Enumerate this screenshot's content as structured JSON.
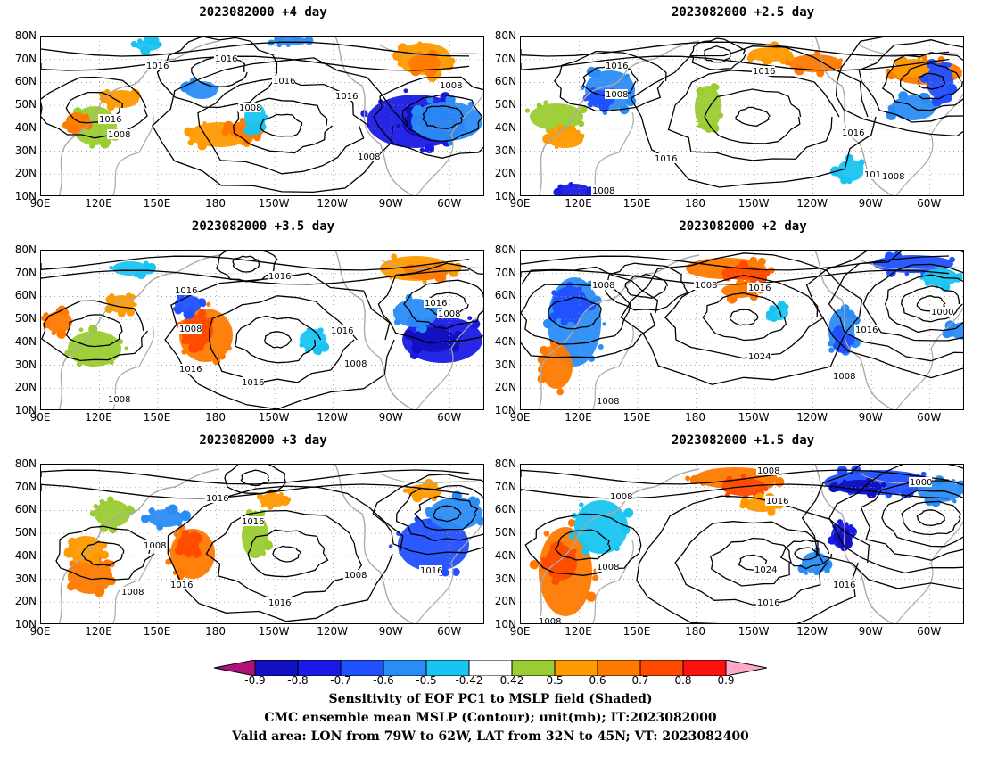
{
  "panels": [
    {
      "id": "p1",
      "title": "2023082000  +4 day"
    },
    {
      "id": "p2",
      "title": "2023082000  +2.5 day"
    },
    {
      "id": "p3",
      "title": "2023082000  +3.5 day"
    },
    {
      "id": "p4",
      "title": "2023082000  +2 day"
    },
    {
      "id": "p5",
      "title": "2023082000  +3 day"
    },
    {
      "id": "p6",
      "title": "2023082000  +1.5 day"
    }
  ],
  "axes": {
    "lat_labels": [
      "80N",
      "70N",
      "60N",
      "50N",
      "40N",
      "30N",
      "20N",
      "10N"
    ],
    "lon_labels": [
      "90E",
      "120E",
      "150E",
      "180",
      "150W",
      "120W",
      "90W",
      "60W"
    ]
  },
  "contour_labels": {
    "p1": [
      "1016",
      "1016",
      "1016",
      "1016",
      "1008",
      "1016",
      "1008",
      "1008",
      "1008"
    ],
    "p2": [
      "1016",
      "1016",
      "1008",
      "1016",
      "1016",
      "1016",
      "1008",
      "1008"
    ],
    "p3": [
      "1016",
      "1016",
      "1016",
      "1008",
      "1016",
      "1016",
      "1016",
      "1008",
      "1008",
      "1008"
    ],
    "p4": [
      "1008",
      "1008",
      "1016",
      "1000",
      "1016",
      "1024",
      "1008",
      "1008"
    ],
    "p5": [
      "1016",
      "1016",
      "1008",
      "1016",
      "1008",
      "1008",
      "1016",
      "1016"
    ],
    "p6": [
      "1008",
      "1008",
      "1000",
      "1016",
      "1008",
      "1024",
      "1016",
      "1016",
      "1008"
    ]
  },
  "colorbar": {
    "labels": [
      "-0.9",
      "-0.8",
      "-0.7",
      "-0.6",
      "-0.5",
      "-0.42",
      "0.42",
      "0.5",
      "0.6",
      "0.7",
      "0.8",
      "0.9"
    ],
    "colors": [
      "#b0107a",
      "#1010c0",
      "#1a1ae6",
      "#2050ff",
      "#2a8cf5",
      "#19c4f2",
      "#ffffff",
      "#9acd32",
      "#ff9a00",
      "#ff7a00",
      "#ff4a00",
      "#ff0f0f",
      "#ffa8c8"
    ]
  },
  "captions": {
    "line1": "Sensitivity of EOF PC1 to MSLP field (Shaded)",
    "line2": "CMC ensemble mean MSLP (Contour); unit(mb); IT:2023082000",
    "line3": "Valid area: LON from 79W to 62W, LAT from 32N to 45N; VT: 2023082400"
  }
}
